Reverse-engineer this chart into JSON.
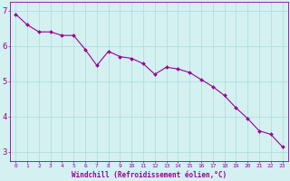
{
  "x": [
    0,
    1,
    2,
    3,
    4,
    5,
    6,
    7,
    8,
    9,
    10,
    11,
    12,
    13,
    14,
    15,
    16,
    17,
    18,
    19,
    20,
    21,
    22,
    23
  ],
  "y": [
    6.9,
    6.6,
    6.4,
    6.4,
    6.3,
    6.3,
    5.9,
    5.45,
    5.85,
    5.7,
    5.65,
    5.5,
    5.2,
    5.4,
    5.35,
    5.25,
    5.05,
    4.85,
    4.6,
    4.25,
    3.95,
    3.6,
    3.5,
    3.15
  ],
  "line_color": "#990099",
  "marker": "D",
  "marker_size": 2.0,
  "bg_color": "#d4f0f0",
  "grid_color": "#aadddd",
  "xlim_min": -0.5,
  "xlim_max": 23.5,
  "ylim_min": 2.75,
  "ylim_max": 7.25,
  "yticks": [
    3,
    4,
    5,
    6,
    7
  ],
  "xticks": [
    0,
    1,
    2,
    3,
    4,
    5,
    6,
    7,
    8,
    9,
    10,
    11,
    12,
    13,
    14,
    15,
    16,
    17,
    18,
    19,
    20,
    21,
    22,
    23
  ],
  "xlabel": "Windchill (Refroidissement éolien,°C)",
  "xlabel_color": "#990099",
  "tick_color": "#990099",
  "axis_color": "#990099",
  "xtick_fontsize": 4.5,
  "ytick_fontsize": 6.5,
  "xlabel_fontsize": 5.5
}
